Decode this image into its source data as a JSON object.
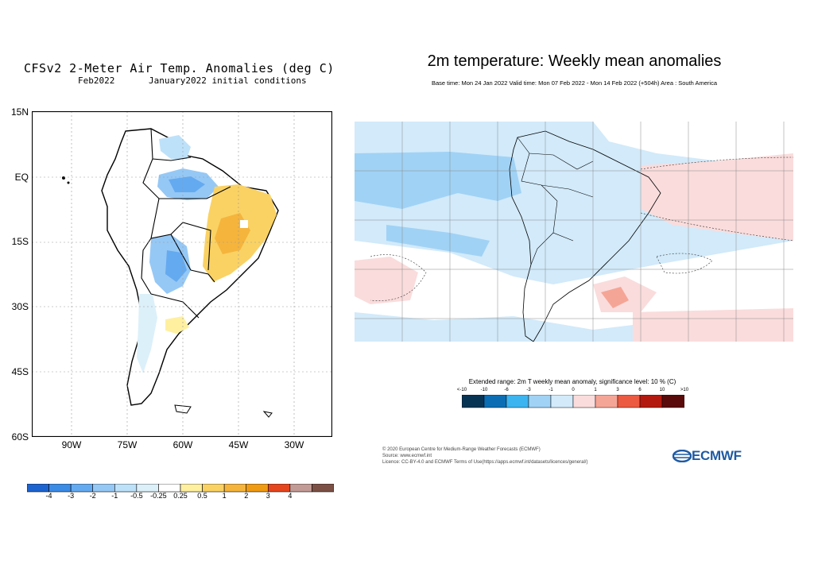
{
  "left_panel": {
    "title": "CFSv2 2-Meter Air Temp. Anomalies (deg C)",
    "month": "Feb2022",
    "initial_conditions": "January2022 initial conditions",
    "lat_labels": [
      "15N",
      "EQ",
      "15S",
      "30S",
      "45S",
      "60S"
    ],
    "lon_labels": [
      "90W",
      "75W",
      "60W",
      "45W",
      "30W"
    ],
    "colorbar": {
      "colors": [
        "#1e64d0",
        "#3c8ce6",
        "#64aaf0",
        "#96c8f5",
        "#bee1fa",
        "#dcf0fa",
        "#ffffff",
        "#fff0a0",
        "#fad264",
        "#f5b43c",
        "#f09b14",
        "#e6461e",
        "#c39b96",
        "#7d5046"
      ],
      "labels": [
        "-4",
        "-3",
        "-2",
        "-1",
        "-0.5",
        "-0.25",
        "0.25",
        "0.5",
        "1",
        "2",
        "3",
        "4"
      ]
    }
  },
  "right_panel": {
    "title": "2m temperature: Weekly mean anomalies",
    "subtitle": "Base time: Mon 24 Jan 2022 Valid time: Mon 07 Feb 2022 - Mon 14 Feb 2022 (+504h) Area : South America",
    "colorbar": {
      "title": "Extended range: 2m T weekly mean anomaly, significance level: 10 % (C)",
      "colors": [
        "#083454",
        "#0b6eb4",
        "#3cb4f0",
        "#a0d2f5",
        "#d2eafa",
        "#fadcdc",
        "#f5a596",
        "#ec5a41",
        "#b4190f",
        "#5a0a0a"
      ],
      "labels": [
        "<-10",
        "-10",
        "-6",
        "-3",
        "-1",
        "0",
        "1",
        "3",
        "6",
        "10",
        ">10"
      ]
    },
    "credits": [
      "© 2020 European Centre for Medium-Range Weather Forecasts (ECMWF)",
      "Source: www.ecmwf.int",
      "Licence: CC-BY-4.0 and ECMWF Terms of Use(https://apps.ecmwf.int/datasets/licences/general/)"
    ],
    "logo_text": "ECMWF"
  }
}
